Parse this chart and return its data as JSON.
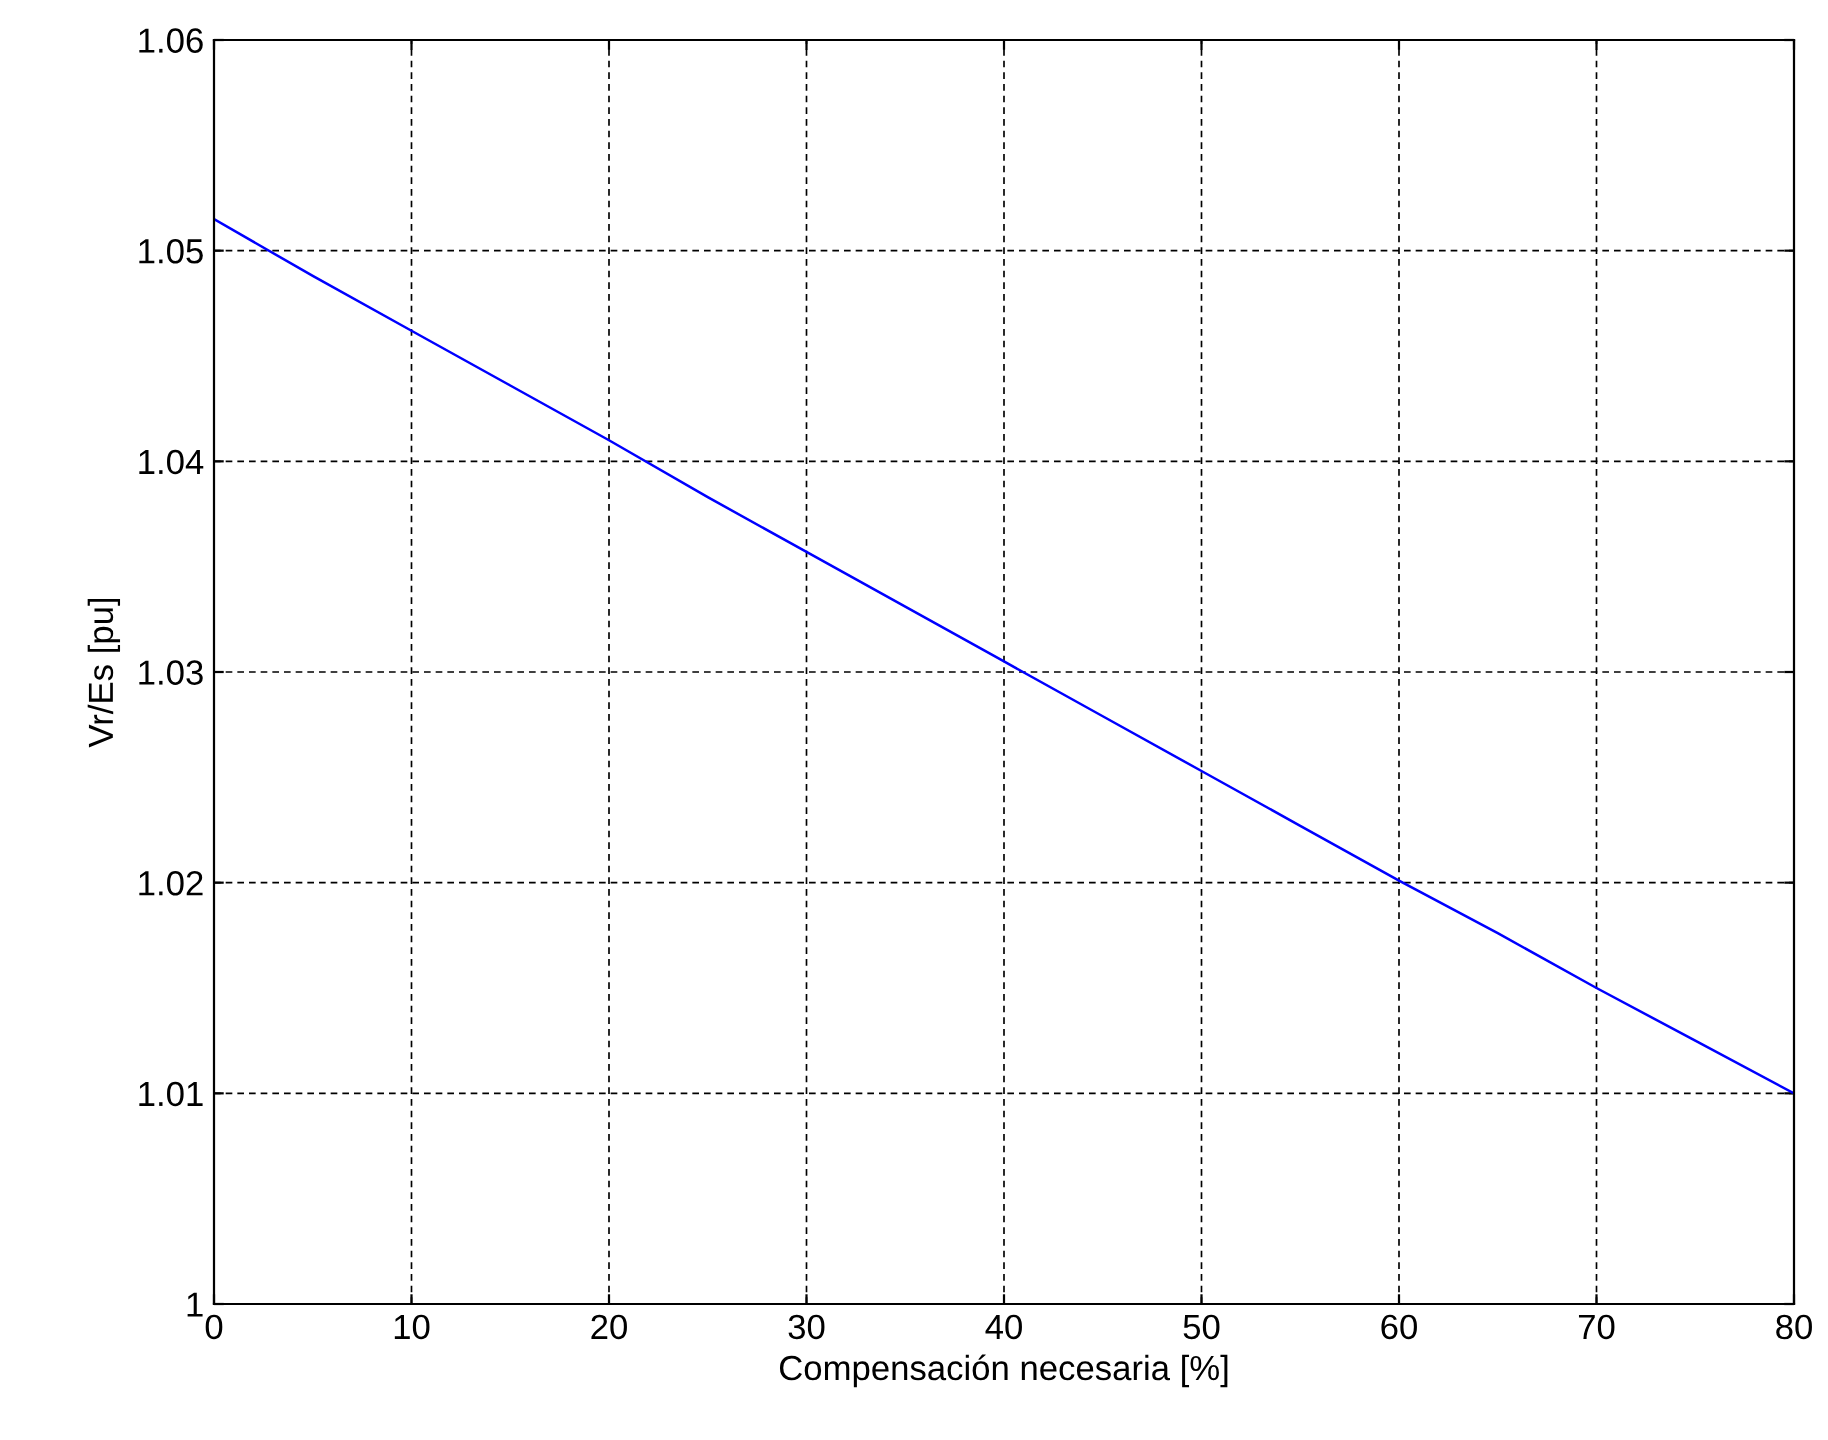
{
  "chart_data": {
    "type": "line",
    "xlabel": "Compensación necesaria [%]",
    "ylabel": "Vr/Es [pu]",
    "x": [
      0,
      5,
      10,
      15,
      20,
      25,
      30,
      35,
      40,
      45,
      50,
      55,
      60,
      65,
      70,
      75,
      80
    ],
    "series": [
      {
        "color": "#0000ff",
        "values": [
          1.0515,
          1.0488,
          1.0462,
          1.0436,
          1.041,
          1.0383,
          1.0357,
          1.0331,
          1.0305,
          1.0279,
          1.0253,
          1.0227,
          1.0201,
          1.0176,
          1.015,
          1.0125,
          1.01
        ]
      }
    ],
    "xlim": [
      0,
      80
    ],
    "ylim": [
      1,
      1.06
    ],
    "xticks": [
      0,
      10,
      20,
      30,
      40,
      50,
      60,
      70,
      80
    ],
    "yticks": [
      1,
      1.01,
      1.02,
      1.03,
      1.04,
      1.05,
      1.06
    ],
    "grid": true,
    "line_style": "solid",
    "marker": "none"
  }
}
